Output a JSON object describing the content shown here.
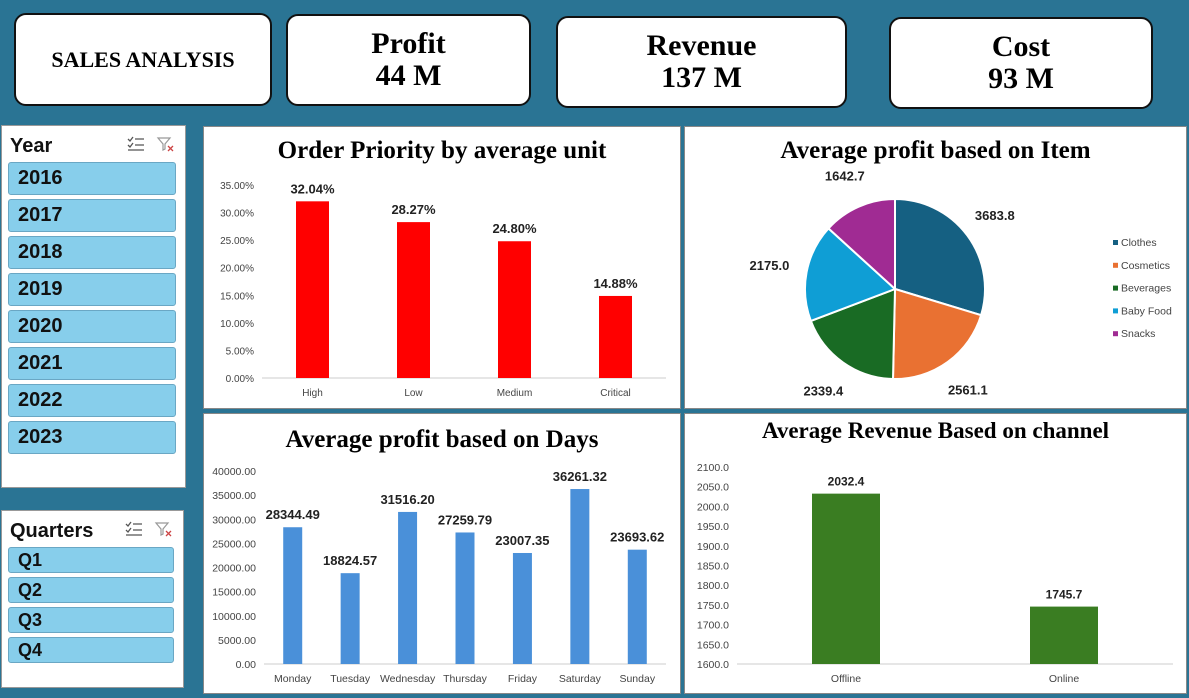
{
  "header": {
    "title": "SALES ANALYSIS",
    "kpis": {
      "profit": {
        "label": "Profit",
        "value": "44 M"
      },
      "revenue": {
        "label": "Revenue",
        "value": "137 M"
      },
      "cost": {
        "label": "Cost",
        "value": "93 M"
      }
    }
  },
  "slicers": {
    "year": {
      "title": "Year",
      "icons": [
        "multi-select-icon",
        "clear-filter-icon"
      ],
      "items": [
        "2016",
        "2017",
        "2018",
        "2019",
        "2020",
        "2021",
        "2022",
        "2023"
      ]
    },
    "quarters": {
      "title": "Quarters",
      "icons": [
        "multi-select-icon",
        "clear-filter-icon"
      ],
      "items": [
        "Q1",
        "Q2",
        "Q3",
        "Q4"
      ]
    }
  },
  "chart_data": [
    {
      "type": "bar",
      "title": "Order Priority by average unit",
      "categories": [
        "High",
        "Low",
        "Medium",
        "Critical"
      ],
      "values": [
        32.04,
        28.27,
        24.8,
        14.88
      ],
      "data_labels": [
        "32.04%",
        "28.27%",
        "24.80%",
        "14.88%"
      ],
      "ylim": [
        0,
        35
      ],
      "yticks": [
        "0.00%",
        "5.00%",
        "10.00%",
        "15.00%",
        "20.00%",
        "25.00%",
        "30.00%",
        "35.00%"
      ],
      "color": "#ff0000",
      "grid": false
    },
    {
      "type": "pie",
      "title": "Average profit based on Item",
      "categories": [
        "Clothes",
        "Cosmetics",
        "Beverages",
        "Baby Food",
        "Snacks"
      ],
      "values": [
        3683.8,
        2561.1,
        2339.4,
        2175.0,
        1642.7
      ],
      "data_labels": [
        "3683.8",
        "2561.1",
        "2339.4",
        "2175.0",
        "1642.7"
      ],
      "colors": [
        "#156082",
        "#e97132",
        "#196b24",
        "#0f9ed5",
        "#a02b93"
      ],
      "legend": "right"
    },
    {
      "type": "bar",
      "title": "Average profit based on Days",
      "categories": [
        "Monday",
        "Tuesday",
        "Wednesday",
        "Thursday",
        "Friday",
        "Saturday",
        "Sunday"
      ],
      "values": [
        28344.49,
        18824.57,
        31516.2,
        27259.79,
        23007.35,
        36261.32,
        23693.62
      ],
      "data_labels": [
        "28344.49",
        "18824.57",
        "31516.20",
        "27259.79",
        "23007.35",
        "36261.32",
        "23693.62"
      ],
      "ylim": [
        0,
        40000
      ],
      "yticks": [
        "0.00",
        "5000.00",
        "10000.00",
        "15000.00",
        "20000.00",
        "25000.00",
        "30000.00",
        "35000.00",
        "40000.00"
      ],
      "color": "#4a90d9",
      "grid": false
    },
    {
      "type": "bar",
      "title": "Average Revenue Based on channel",
      "categories": [
        "Offline",
        "Online"
      ],
      "values": [
        2032.4,
        1745.7
      ],
      "data_labels": [
        "2032.4",
        "1745.7"
      ],
      "ylim": [
        1600,
        2100
      ],
      "yticks": [
        "1600.0",
        "1650.0",
        "1700.0",
        "1750.0",
        "1800.0",
        "1850.0",
        "1900.0",
        "1950.0",
        "2000.0",
        "2050.0",
        "2100.0"
      ],
      "color": "#3a7d22",
      "grid": false
    }
  ]
}
